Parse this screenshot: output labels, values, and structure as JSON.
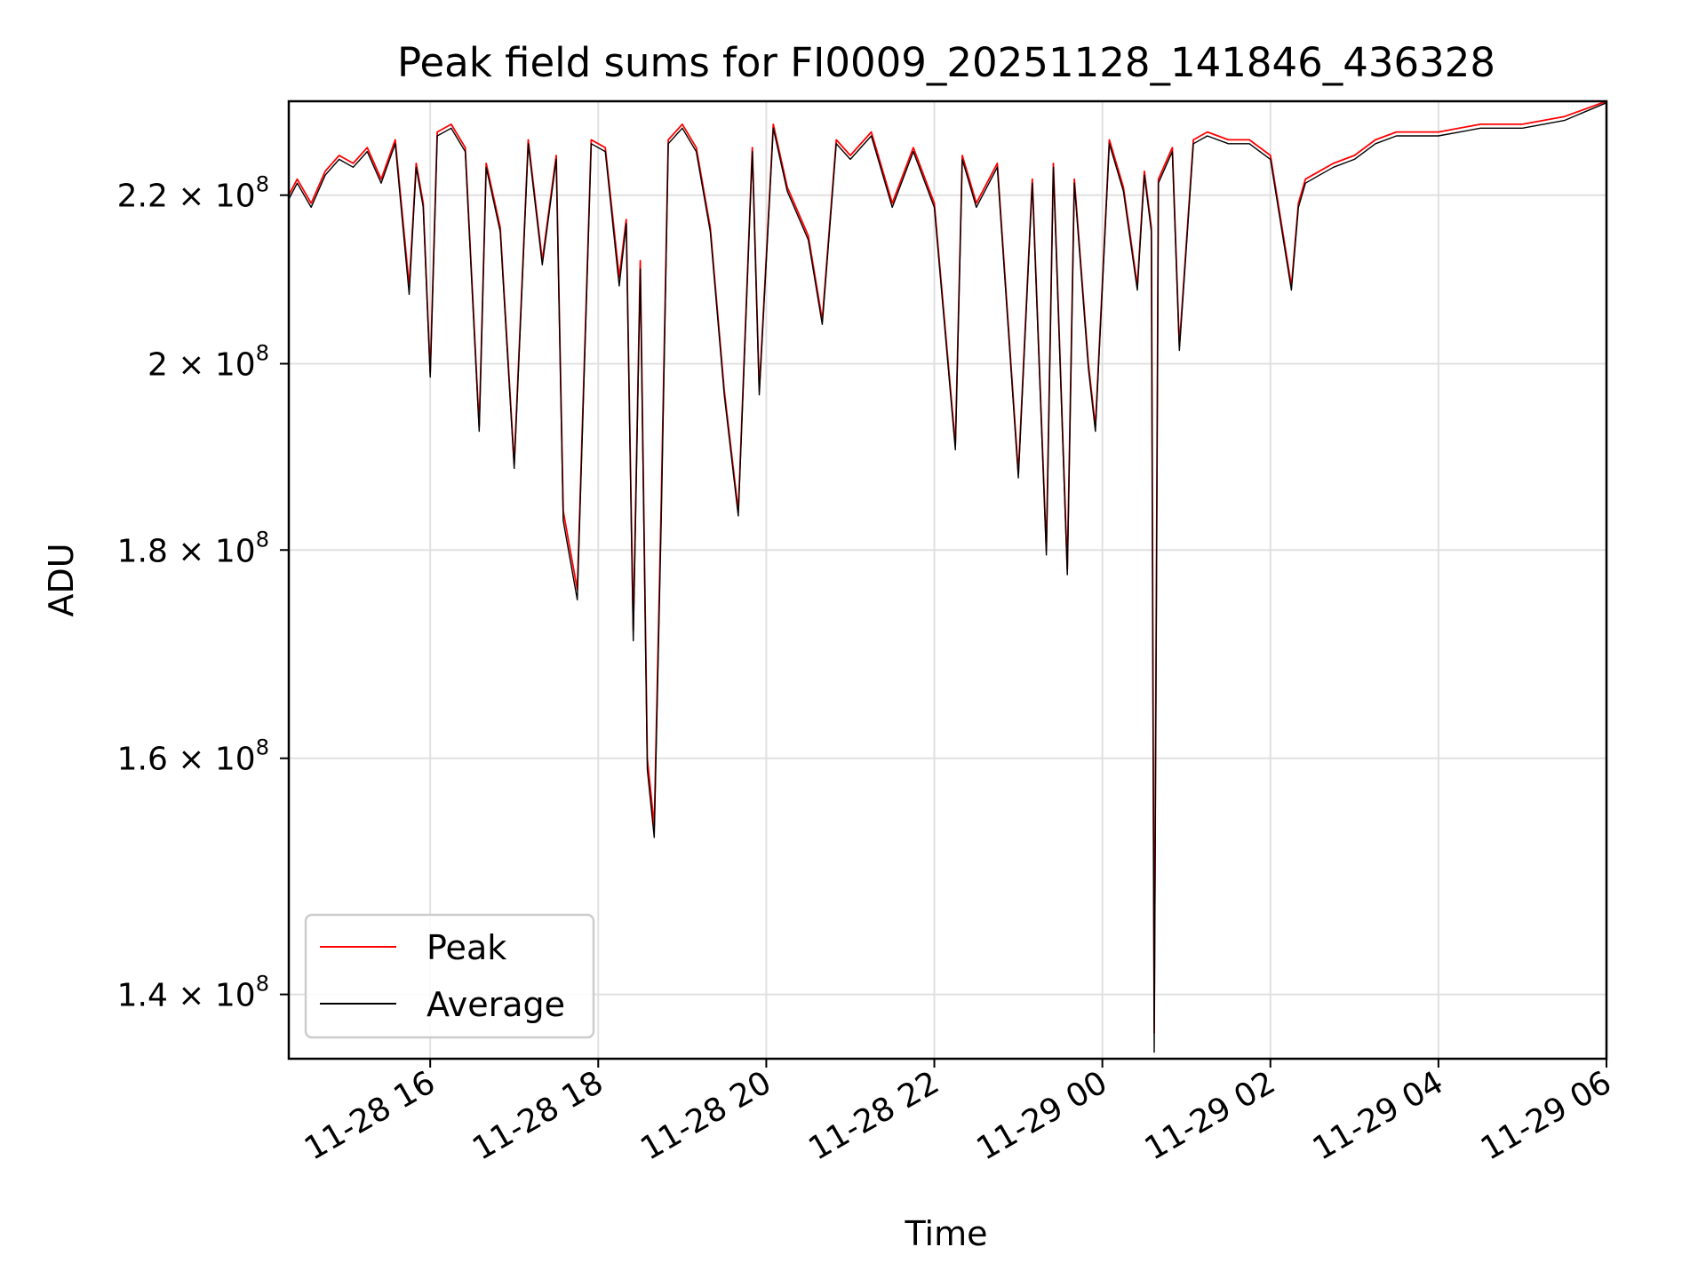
{
  "chart_data": {
    "type": "line",
    "title": "Peak field sums for FI0009_20251128_141846_436328",
    "xlabel": "Time",
    "ylabel": "ADU",
    "x_range": [
      "2025-11-28 14:19",
      "2025-11-29 06:00"
    ],
    "ylim": [
      135000000,
      232000000
    ],
    "y_scale": "log",
    "grid": true,
    "legend_position": "lower-left",
    "x_ticks": [
      {
        "value": "2025-11-28 16:00",
        "label": "11-28 16"
      },
      {
        "value": "2025-11-28 18:00",
        "label": "11-28 18"
      },
      {
        "value": "2025-11-28 20:00",
        "label": "11-28 20"
      },
      {
        "value": "2025-11-28 22:00",
        "label": "11-28 22"
      },
      {
        "value": "2025-11-29 00:00",
        "label": "11-29 00"
      },
      {
        "value": "2025-11-29 02:00",
        "label": "11-29 02"
      },
      {
        "value": "2025-11-29 04:00",
        "label": "11-29 04"
      },
      {
        "value": "2025-11-29 06:00",
        "label": "11-29 06"
      }
    ],
    "y_ticks": [
      {
        "value": 140000000,
        "mantissa": "1.4",
        "base": "× 10",
        "exp": "8"
      },
      {
        "value": 160000000,
        "mantissa": "1.6",
        "base": "× 10",
        "exp": "8"
      },
      {
        "value": 180000000,
        "mantissa": "1.8",
        "base": "× 10",
        "exp": "8"
      },
      {
        "value": 200000000,
        "mantissa": "2",
        "base": "× 10",
        "exp": "8"
      },
      {
        "value": 220000000,
        "mantissa": "2.2",
        "base": "× 10",
        "exp": "8"
      }
    ],
    "series": [
      {
        "name": "Peak",
        "color": "#ff0000",
        "x": [
          "2025-11-28 14:19",
          "2025-11-28 14:25",
          "2025-11-28 14:35",
          "2025-11-28 14:45",
          "2025-11-28 14:55",
          "2025-11-28 15:05",
          "2025-11-28 15:15",
          "2025-11-28 15:25",
          "2025-11-28 15:35",
          "2025-11-28 15:45",
          "2025-11-28 15:50",
          "2025-11-28 15:55",
          "2025-11-28 16:00",
          "2025-11-28 16:05",
          "2025-11-28 16:15",
          "2025-11-28 16:25",
          "2025-11-28 16:35",
          "2025-11-28 16:40",
          "2025-11-28 16:50",
          "2025-11-28 17:00",
          "2025-11-28 17:10",
          "2025-11-28 17:20",
          "2025-11-28 17:30",
          "2025-11-28 17:35",
          "2025-11-28 17:45",
          "2025-11-28 17:55",
          "2025-11-28 18:05",
          "2025-11-28 18:15",
          "2025-11-28 18:20",
          "2025-11-28 18:25",
          "2025-11-28 18:30",
          "2025-11-28 18:35",
          "2025-11-28 18:40",
          "2025-11-28 18:45",
          "2025-11-28 18:50",
          "2025-11-28 19:00",
          "2025-11-28 19:10",
          "2025-11-28 19:20",
          "2025-11-28 19:30",
          "2025-11-28 19:40",
          "2025-11-28 19:50",
          "2025-11-28 19:55",
          "2025-11-28 20:05",
          "2025-11-28 20:15",
          "2025-11-28 20:30",
          "2025-11-28 20:40",
          "2025-11-28 20:50",
          "2025-11-28 21:00",
          "2025-11-28 21:15",
          "2025-11-28 21:30",
          "2025-11-28 21:45",
          "2025-11-28 22:00",
          "2025-11-28 22:15",
          "2025-11-28 22:20",
          "2025-11-28 22:30",
          "2025-11-28 22:45",
          "2025-11-28 23:00",
          "2025-11-28 23:10",
          "2025-11-28 23:20",
          "2025-11-28 23:25",
          "2025-11-28 23:35",
          "2025-11-28 23:40",
          "2025-11-28 23:50",
          "2025-11-28 23:55",
          "2025-11-29 00:05",
          "2025-11-29 00:15",
          "2025-11-29 00:25",
          "2025-11-29 00:30",
          "2025-11-29 00:35",
          "2025-11-29 00:37",
          "2025-11-29 00:40",
          "2025-11-29 00:50",
          "2025-11-29 00:55",
          "2025-11-29 01:05",
          "2025-11-29 01:15",
          "2025-11-29 01:30",
          "2025-11-29 01:45",
          "2025-11-29 02:00",
          "2025-11-29 02:15",
          "2025-11-29 02:20",
          "2025-11-29 02:25",
          "2025-11-29 02:35",
          "2025-11-29 02:45",
          "2025-11-29 03:00",
          "2025-11-29 03:15",
          "2025-11-29 03:30",
          "2025-11-29 04:00",
          "2025-11-29 04:30",
          "2025-11-29 05:00",
          "2025-11-29 05:30",
          "2025-11-29 06:00"
        ],
        "y": [
          220000000,
          222000000,
          219000000,
          223000000,
          225000000,
          224000000,
          226000000,
          222000000,
          227000000,
          209000000,
          224000000,
          219000000,
          199000000,
          228000000,
          229000000,
          226000000,
          193000000,
          224000000,
          216000000,
          189000000,
          227000000,
          212000000,
          225000000,
          184000000,
          176000000,
          227000000,
          226000000,
          210000000,
          217000000,
          172000000,
          212000000,
          160000000,
          154000000,
          185000000,
          227000000,
          229000000,
          226000000,
          216000000,
          197000000,
          184000000,
          226000000,
          197000000,
          229000000,
          221000000,
          215000000,
          205000000,
          227000000,
          225000000,
          228000000,
          219000000,
          226000000,
          219000000,
          191000000,
          225000000,
          219000000,
          224000000,
          188000000,
          222000000,
          180000000,
          224000000,
          178000000,
          222000000,
          200000000,
          193000000,
          227000000,
          221000000,
          209000000,
          223000000,
          216000000,
          137000000,
          222000000,
          226000000,
          202000000,
          227000000,
          228000000,
          227000000,
          227000000,
          225000000,
          209000000,
          219000000,
          222000000,
          223000000,
          224000000,
          225000000,
          227000000,
          228000000,
          228000000,
          229000000,
          229000000,
          230000000,
          232000000
        ]
      },
      {
        "name": "Average",
        "color": "#000000",
        "x": [
          "2025-11-28 14:19",
          "2025-11-28 14:25",
          "2025-11-28 14:35",
          "2025-11-28 14:45",
          "2025-11-28 14:55",
          "2025-11-28 15:05",
          "2025-11-28 15:15",
          "2025-11-28 15:25",
          "2025-11-28 15:35",
          "2025-11-28 15:45",
          "2025-11-28 15:50",
          "2025-11-28 15:55",
          "2025-11-28 16:00",
          "2025-11-28 16:05",
          "2025-11-28 16:15",
          "2025-11-28 16:25",
          "2025-11-28 16:35",
          "2025-11-28 16:40",
          "2025-11-28 16:50",
          "2025-11-28 17:00",
          "2025-11-28 17:10",
          "2025-11-28 17:20",
          "2025-11-28 17:30",
          "2025-11-28 17:35",
          "2025-11-28 17:45",
          "2025-11-28 17:55",
          "2025-11-28 18:05",
          "2025-11-28 18:15",
          "2025-11-28 18:20",
          "2025-11-28 18:25",
          "2025-11-28 18:30",
          "2025-11-28 18:35",
          "2025-11-28 18:40",
          "2025-11-28 18:45",
          "2025-11-28 18:50",
          "2025-11-28 19:00",
          "2025-11-28 19:10",
          "2025-11-28 19:20",
          "2025-11-28 19:30",
          "2025-11-28 19:40",
          "2025-11-28 19:50",
          "2025-11-28 19:55",
          "2025-11-28 20:05",
          "2025-11-28 20:15",
          "2025-11-28 20:30",
          "2025-11-28 20:40",
          "2025-11-28 20:50",
          "2025-11-28 21:00",
          "2025-11-28 21:15",
          "2025-11-28 21:30",
          "2025-11-28 21:45",
          "2025-11-28 22:00",
          "2025-11-28 22:15",
          "2025-11-28 22:20",
          "2025-11-28 22:30",
          "2025-11-28 22:45",
          "2025-11-28 23:00",
          "2025-11-28 23:10",
          "2025-11-28 23:20",
          "2025-11-28 23:25",
          "2025-11-28 23:35",
          "2025-11-28 23:40",
          "2025-11-28 23:50",
          "2025-11-28 23:55",
          "2025-11-29 00:05",
          "2025-11-29 00:15",
          "2025-11-29 00:25",
          "2025-11-29 00:30",
          "2025-11-29 00:35",
          "2025-11-29 00:37",
          "2025-11-29 00:40",
          "2025-11-29 00:50",
          "2025-11-29 00:55",
          "2025-11-29 01:05",
          "2025-11-29 01:15",
          "2025-11-29 01:30",
          "2025-11-29 01:45",
          "2025-11-29 02:00",
          "2025-11-29 02:15",
          "2025-11-29 02:20",
          "2025-11-29 02:25",
          "2025-11-29 02:35",
          "2025-11-29 02:45",
          "2025-11-29 03:00",
          "2025-11-29 03:15",
          "2025-11-29 03:30",
          "2025-11-29 04:00",
          "2025-11-29 04:30",
          "2025-11-29 05:00",
          "2025-11-29 05:30",
          "2025-11-29 06:00"
        ],
        "y": [
          219500000,
          221500000,
          218500000,
          222500000,
          224500000,
          223500000,
          225500000,
          221500000,
          226500000,
          208000000,
          223500000,
          218500000,
          198500000,
          227500000,
          228500000,
          225500000,
          192500000,
          223500000,
          215500000,
          188500000,
          226500000,
          211500000,
          224500000,
          183000000,
          175000000,
          226500000,
          225500000,
          209000000,
          216500000,
          171000000,
          211000000,
          159000000,
          153000000,
          183000000,
          226500000,
          228500000,
          225500000,
          215500000,
          196500000,
          183500000,
          225500000,
          196500000,
          228500000,
          220500000,
          214500000,
          204500000,
          226500000,
          224500000,
          227500000,
          218500000,
          225500000,
          218500000,
          190500000,
          224500000,
          218500000,
          223500000,
          187500000,
          221500000,
          179500000,
          223500000,
          177500000,
          221500000,
          199500000,
          192500000,
          226500000,
          220500000,
          208500000,
          222500000,
          215500000,
          135500000,
          221500000,
          225500000,
          201500000,
          226500000,
          227500000,
          226500000,
          226500000,
          224500000,
          208500000,
          218500000,
          221500000,
          222500000,
          223500000,
          224500000,
          226500000,
          227500000,
          227500000,
          228500000,
          228500000,
          229500000,
          231800000
        ]
      }
    ]
  }
}
